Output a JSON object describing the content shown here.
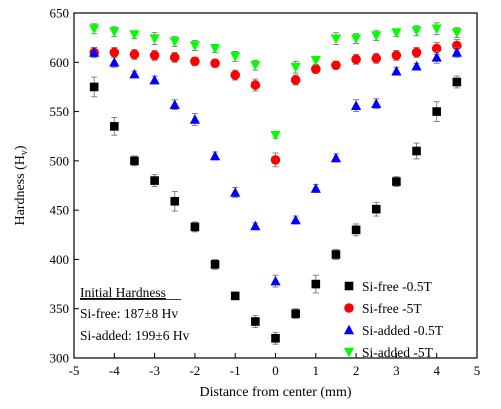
{
  "chart_data": {
    "type": "scatter",
    "xlabel": "Distance from center (mm)",
    "ylabel": "Hardness (H",
    "ylabel_sub": "v",
    "ylabel_end": ")",
    "xlim": [
      -5,
      5
    ],
    "ylim": [
      300,
      650
    ],
    "x_ticks": [
      -5,
      -4,
      -3,
      -2,
      -1,
      0,
      1,
      2,
      3,
      4,
      5
    ],
    "y_ticks": [
      300,
      350,
      400,
      450,
      500,
      550,
      600,
      650
    ],
    "grid": false,
    "legend_position": "bottom-right",
    "annotation": {
      "title": "Initial Hardness",
      "lines": [
        "Si-free: 187±8 Hv",
        "Si-added: 199±6 Hv"
      ]
    },
    "series": [
      {
        "name": "Si-free -0.5T",
        "marker": "square",
        "color": "#000000",
        "x": [
          -4.5,
          -4,
          -3.5,
          -3,
          -2.5,
          -2,
          -1.5,
          -1,
          -0.5,
          0,
          0.5,
          1,
          1.5,
          2,
          2.5,
          3,
          3.5,
          4,
          4.5
        ],
        "y": [
          575,
          535,
          500,
          480,
          459,
          433,
          395,
          363,
          337,
          320,
          345,
          375,
          405,
          430,
          451,
          479,
          510,
          550,
          580
        ],
        "err": [
          10,
          9,
          5,
          6,
          10,
          5,
          5,
          3,
          6,
          6,
          5,
          9,
          5,
          6,
          7,
          5,
          8,
          10,
          6
        ]
      },
      {
        "name": "Si-free -5T",
        "marker": "circle",
        "color": "#ff0000",
        "x": [
          -4.5,
          -4,
          -3.5,
          -3,
          -2.5,
          -2,
          -1.5,
          -1,
          -0.5,
          0,
          0.5,
          1,
          1.5,
          2,
          2.5,
          3,
          3.5,
          4,
          4.5
        ],
        "y": [
          610,
          610,
          608,
          607,
          605,
          601,
          599,
          587,
          577,
          501,
          582,
          593,
          597,
          603,
          604,
          607,
          610,
          614,
          617
        ],
        "err": [
          5,
          5,
          5,
          5,
          5,
          4,
          4,
          5,
          6,
          7,
          5,
          4,
          4,
          5,
          5,
          5,
          5,
          6,
          6
        ]
      },
      {
        "name": "Si-added -0.5T",
        "marker": "triangle-up",
        "color": "#0000ff",
        "x": [
          -4.5,
          -4,
          -3.5,
          -3,
          -2.5,
          -2,
          -1.5,
          -1,
          -0.5,
          0,
          0.5,
          1,
          1.5,
          2,
          2.5,
          3,
          3.5,
          4,
          4.5
        ],
        "y": [
          610,
          600,
          588,
          582,
          557,
          542,
          505,
          468,
          434,
          378,
          440,
          472,
          503,
          556,
          558,
          591,
          596,
          605,
          610
        ],
        "err": [
          5,
          5,
          3,
          4,
          5,
          6,
          4,
          5,
          3,
          6,
          4,
          4,
          4,
          6,
          5,
          4,
          3,
          6,
          5
        ]
      },
      {
        "name": "Si-added -5T",
        "marker": "triangle-down",
        "color": "#00ff00",
        "x": [
          -4.5,
          -4,
          -3.5,
          -3,
          -2.5,
          -2,
          -1.5,
          -1,
          -0.5,
          0,
          0.5,
          1,
          1.5,
          2,
          2.5,
          3,
          3.5,
          4,
          4.5
        ],
        "y": [
          634,
          631,
          628,
          624,
          621,
          617,
          614,
          606,
          597,
          526,
          595,
          602,
          624,
          624,
          627,
          630,
          632,
          634,
          630
        ],
        "err": [
          5,
          5,
          4,
          6,
          5,
          5,
          4,
          5,
          5,
          3,
          6,
          4,
          6,
          5,
          5,
          4,
          5,
          6,
          5
        ]
      }
    ]
  }
}
